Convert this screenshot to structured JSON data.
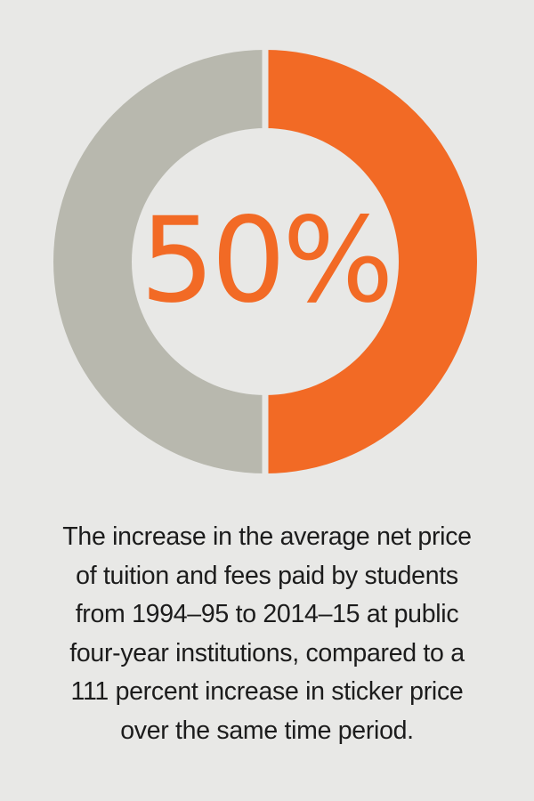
{
  "chart_data": {
    "type": "pie",
    "variant": "donut",
    "slices": [
      {
        "value": 50,
        "color": "#f26a25"
      },
      {
        "value": 50,
        "color": "#b8b8ae"
      }
    ],
    "center_label": "50%",
    "center_label_color": "#f26a25",
    "slice_gap_color": "#e8e8e6"
  },
  "caption": {
    "lines": [
      "The increase in the average net price",
      "of tuition and fees paid by students",
      "from 1994–95 to 2014–15 at public",
      "four-year institutions, compared to a",
      "111 percent increase in sticker price",
      "over the same time period."
    ]
  },
  "colors": {
    "background": "#e8e8e6",
    "accent": "#f26a25",
    "neutral": "#b8b8ae",
    "text": "#1c1c1c"
  }
}
